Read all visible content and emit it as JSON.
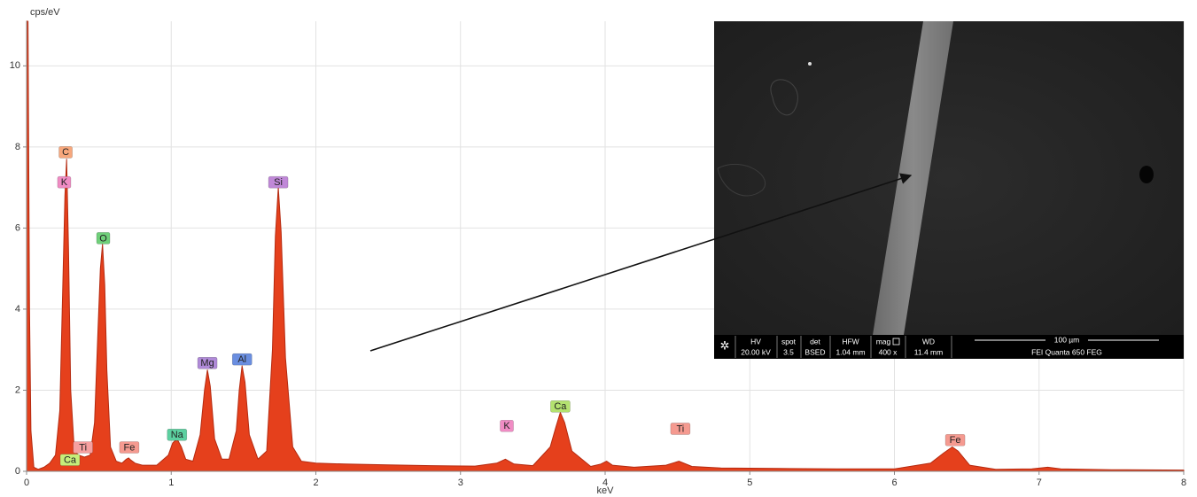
{
  "chart_data": {
    "type": "area",
    "y_label": "cps/eV",
    "x_label": "keV",
    "xlim": [
      0,
      8
    ],
    "ylim": [
      0,
      11.1
    ],
    "xticks": [
      0,
      1,
      2,
      3,
      4,
      5,
      6,
      7,
      8
    ],
    "yticks": [
      0,
      2,
      4,
      6,
      8,
      10
    ],
    "grid": true,
    "color": "#e5401c",
    "x": [
      0,
      0.01,
      0.02,
      0.03,
      0.05,
      0.08,
      0.12,
      0.16,
      0.2,
      0.23,
      0.25,
      0.265,
      0.277,
      0.29,
      0.305,
      0.33,
      0.36,
      0.4,
      0.44,
      0.47,
      0.495,
      0.51,
      0.525,
      0.54,
      0.555,
      0.58,
      0.62,
      0.66,
      0.69,
      0.705,
      0.72,
      0.75,
      0.8,
      0.9,
      0.98,
      1.01,
      1.04,
      1.07,
      1.1,
      1.15,
      1.2,
      1.23,
      1.25,
      1.27,
      1.3,
      1.35,
      1.4,
      1.45,
      1.47,
      1.49,
      1.51,
      1.54,
      1.6,
      1.66,
      1.7,
      1.72,
      1.74,
      1.76,
      1.79,
      1.84,
      1.9,
      2.0,
      2.2,
      2.5,
      2.8,
      3.1,
      3.25,
      3.31,
      3.37,
      3.5,
      3.62,
      3.66,
      3.69,
      3.72,
      3.77,
      3.9,
      3.97,
      4.01,
      4.05,
      4.2,
      4.42,
      4.51,
      4.6,
      4.8,
      5.2,
      5.6,
      6.0,
      6.25,
      6.34,
      6.4,
      6.44,
      6.52,
      6.7,
      6.95,
      7.06,
      7.15,
      7.5,
      8.0
    ],
    "values": [
      11.1,
      11.1,
      4,
      1.0,
      0.1,
      0.05,
      0.1,
      0.2,
      0.4,
      1.5,
      4.5,
      6.8,
      7.7,
      5.5,
      2.0,
      0.5,
      0.4,
      0.35,
      0.4,
      1.2,
      3.6,
      5.0,
      5.6,
      4.6,
      2.5,
      0.6,
      0.25,
      0.2,
      0.3,
      0.33,
      0.28,
      0.2,
      0.15,
      0.15,
      0.4,
      0.7,
      0.8,
      0.6,
      0.3,
      0.25,
      0.9,
      2.0,
      2.5,
      2.1,
      0.8,
      0.3,
      0.3,
      1.0,
      2.0,
      2.6,
      2.2,
      0.9,
      0.3,
      0.5,
      3.0,
      5.8,
      7.0,
      5.9,
      2.8,
      0.6,
      0.25,
      0.2,
      0.18,
      0.16,
      0.14,
      0.13,
      0.2,
      0.3,
      0.18,
      0.14,
      0.6,
      1.1,
      1.45,
      1.2,
      0.5,
      0.12,
      0.18,
      0.25,
      0.15,
      0.1,
      0.15,
      0.25,
      0.12,
      0.08,
      0.07,
      0.06,
      0.06,
      0.2,
      0.45,
      0.6,
      0.5,
      0.15,
      0.05,
      0.06,
      0.1,
      0.06,
      0.04,
      0.03
    ],
    "annotations": [
      {
        "text": "C",
        "x": 0.27,
        "y": 7.87,
        "color": "#f7a77c"
      },
      {
        "text": "K",
        "x": 0.26,
        "y": 7.13,
        "color": "#f08cc4"
      },
      {
        "text": "O",
        "x": 0.53,
        "y": 5.75,
        "color": "#6fd07a"
      },
      {
        "text": "Ti",
        "x": 0.39,
        "y": 0.59,
        "color": "#f6a0a0"
      },
      {
        "text": "Ca",
        "x": 0.3,
        "y": 0.28,
        "color": "#c6ee7a"
      },
      {
        "text": "Fe",
        "x": 0.71,
        "y": 0.59,
        "color": "#f59a90"
      },
      {
        "text": "Na",
        "x": 1.04,
        "y": 0.9,
        "color": "#5cd0a0"
      },
      {
        "text": "Mg",
        "x": 1.25,
        "y": 2.67,
        "color": "#b08ad8"
      },
      {
        "text": "Al",
        "x": 1.49,
        "y": 2.76,
        "color": "#6a8ee0"
      },
      {
        "text": "Si",
        "x": 1.74,
        "y": 7.13,
        "color": "#c088d8"
      },
      {
        "text": "K",
        "x": 3.32,
        "y": 1.12,
        "color": "#f08cc4"
      },
      {
        "text": "Ca",
        "x": 3.69,
        "y": 1.6,
        "color": "#b4e270"
      },
      {
        "text": "Ti",
        "x": 4.52,
        "y": 1.05,
        "color": "#f59a90"
      },
      {
        "text": "Fe",
        "x": 6.42,
        "y": 0.77,
        "color": "#f59a90"
      }
    ]
  },
  "inset": {
    "hv_label": "HV",
    "hv": "20.00 kV",
    "spot_label": "spot",
    "spot": "3.5",
    "det_label": "det",
    "det": "BSED",
    "hfw_label": "HFW",
    "hfw": "1.04 mm",
    "mag_label": "mag",
    "mag": "400 x",
    "wd_label": "WD",
    "wd": "11.4 mm",
    "scale": "100 µm",
    "instrument": "FEI Quanta 650 FEG"
  }
}
